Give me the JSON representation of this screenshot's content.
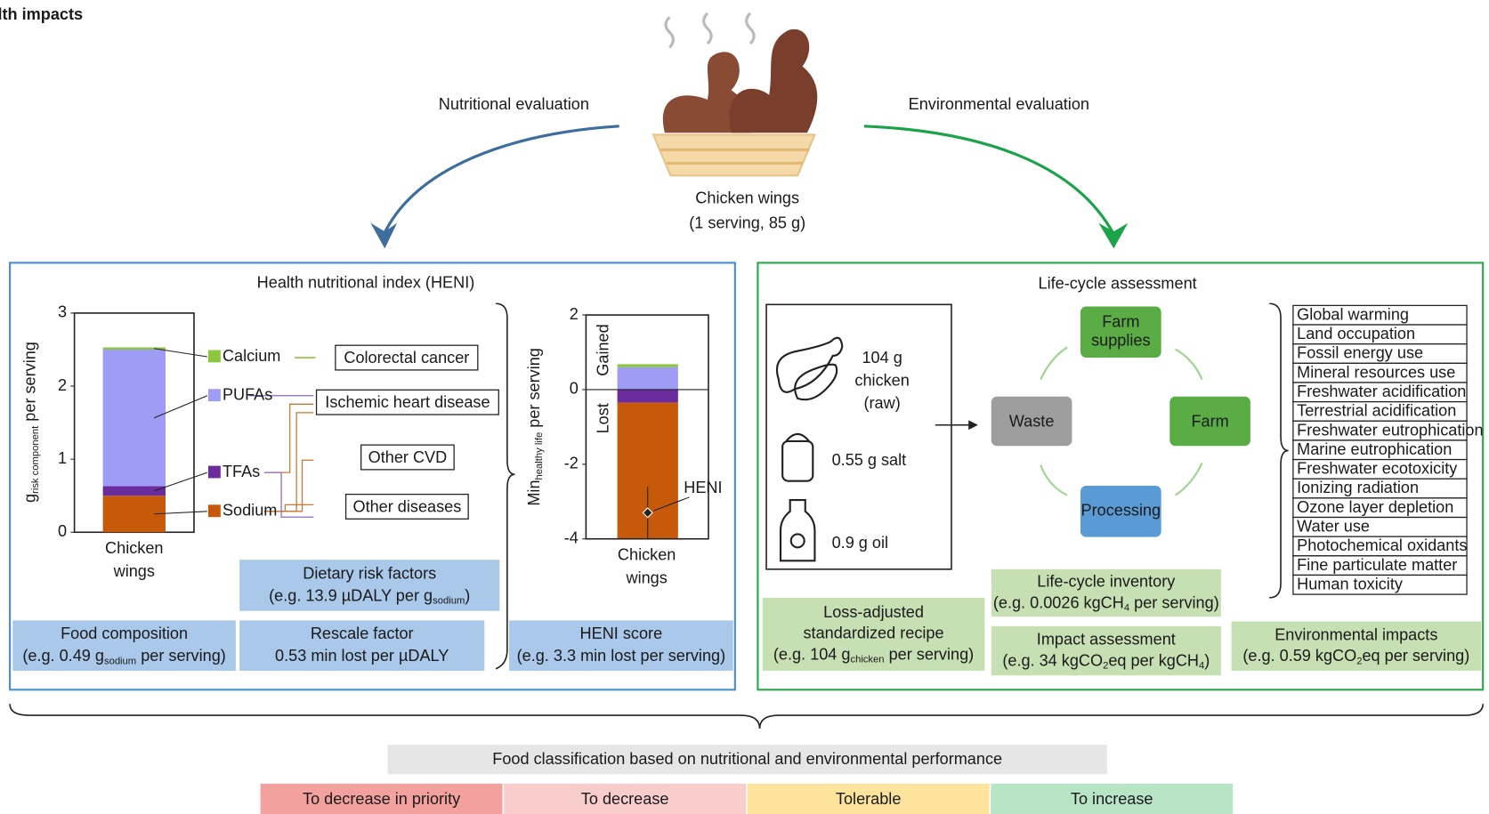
{
  "title": "health impacts",
  "food": {
    "name": "Chicken wings",
    "serving": "(1 serving, 85 g)"
  },
  "nutritional_evaluation": "Nutritional evaluation",
  "environmental_evaluation": "Environmental evaluation",
  "heni_panel": {
    "title": "Health nutritional index (HENI)",
    "composition_chart": {
      "ylabel": [
        "g",
        "risk component",
        " per serving"
      ],
      "ylim": [
        0,
        3
      ],
      "yticks": [
        0,
        1,
        2,
        3
      ],
      "category": [
        "Chicken",
        "wings"
      ],
      "components": [
        {
          "name": "Sodium",
          "color": "#c65a0a",
          "value": 0.5
        },
        {
          "name": "TFAs",
          "color": "#6b2c9e",
          "value": 0.13
        },
        {
          "name": "PUFAs",
          "color": "#9e9cf4",
          "value": 1.87
        },
        {
          "name": "Calcium",
          "color": "#8cc63e",
          "value": 0.03
        }
      ]
    },
    "risk_outcomes": [
      "Colorectal cancer",
      "Ischemic heart disease",
      "Other CVD",
      "Other diseases"
    ],
    "heni_chart": {
      "ylabel": [
        "Min",
        "healthy life",
        " per serving"
      ],
      "ylim": [
        -4,
        2
      ],
      "yticks": [
        -4,
        -2,
        0,
        2
      ],
      "gained": "Gained",
      "lost": "Lost",
      "category": [
        "Chicken",
        "wings"
      ],
      "marker_label": "HENI",
      "heni": -3.3,
      "heni_interval": [
        -4,
        -2.6
      ],
      "components": [
        {
          "color": "#6b2c9e",
          "value": -0.35
        },
        {
          "color": "#c65a0a",
          "value": -3.65
        },
        {
          "color": "#9e9cf4",
          "value": 0.6
        },
        {
          "color": "#8cc63e",
          "value": 0.08
        }
      ]
    },
    "steps": [
      {
        "lines": [
          "Dietary risk factors",
          [
            "(e.g. 13.9 µDALY per g",
            "sodium",
            ")"
          ]
        ]
      },
      {
        "lines": [
          "Food  composition",
          [
            "(e.g. 0.49 g",
            "sodium",
            " per serving)"
          ]
        ]
      },
      {
        "lines": [
          "Rescale factor",
          "0.53 min lost per µDALY"
        ]
      },
      {
        "lines": [
          "HENI score",
          "(e.g. 3.3 min lost per serving)"
        ]
      }
    ]
  },
  "lca_panel": {
    "title": "Life-cycle assessment",
    "recipe": [
      {
        "lines": [
          "104 g",
          "chicken",
          "(raw)"
        ]
      },
      {
        "lines": [
          "0.55 g salt"
        ]
      },
      {
        "lines": [
          "0.9 g oil"
        ]
      }
    ],
    "cycle": [
      {
        "lines": [
          "Farm",
          "supplies"
        ]
      },
      {
        "lines": [
          "Farm"
        ]
      },
      {
        "lines": [
          "Processing"
        ]
      },
      {
        "lines": [
          "Waste"
        ]
      }
    ],
    "impact_categories": [
      "Global warming",
      "Land occupation",
      "Fossil energy use",
      "Mineral resources use",
      "Freshwater acidification",
      "Terrestrial acidification",
      "Freshwater eutrophication",
      "Marine eutrophication",
      "Freshwater ecotoxicity",
      "Ionizing radiation",
      "Ozone layer depletion",
      "Water use",
      "Photochemical oxidants",
      "Fine particulate matter",
      "Human toxicity"
    ],
    "steps": [
      {
        "lines": [
          "Life-cycle inventory",
          [
            "(e.g. 0.0026 kgCH",
            "4",
            " per serving)"
          ]
        ]
      },
      {
        "lines": [
          "Loss-adjusted",
          "standardized recipe",
          [
            "(e.g. 104 g",
            "chicken",
            " per serving)"
          ]
        ]
      },
      {
        "lines": [
          "Impact assessment",
          [
            "(e.g. 34 kgCO",
            "2",
            "eq per kgCH",
            "4",
            ")"
          ]
        ]
      },
      {
        "lines": [
          "Environmental impacts",
          [
            "(e.g. 0.59 kgCO",
            "2",
            "eq per serving)"
          ]
        ]
      }
    ]
  },
  "classification": {
    "title": "Food classification based on nutritional and environmental performance",
    "classes": [
      {
        "label": "To decrease in priority",
        "color": "#f3a19e"
      },
      {
        "label": "To decrease",
        "color": "#f9cdcc"
      },
      {
        "label": "Tolerable",
        "color": "#fde39b"
      },
      {
        "label": "To increase",
        "color": "#b7e5c6"
      }
    ]
  }
}
